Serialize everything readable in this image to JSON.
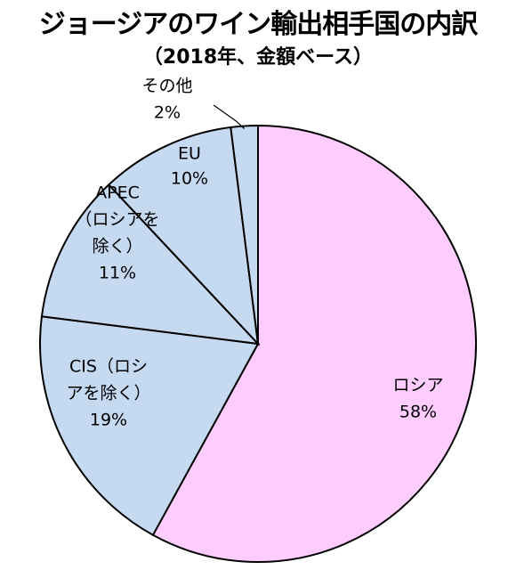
{
  "chart_data": {
    "type": "pie",
    "title": "ジョージアのワイン輸出相手国の内訳",
    "subtitle": "（2018年、金額ベース）",
    "slices": [
      {
        "lines": [
          "ロシア"
        ],
        "pct_label": "58%",
        "value": 58,
        "color": "#ffccff"
      },
      {
        "lines": [
          "CIS（ロシ",
          "アを除く）"
        ],
        "pct_label": "19%",
        "value": 19,
        "color": "#c5d9f1"
      },
      {
        "lines": [
          "APEC",
          "（ロシアを",
          "除く）"
        ],
        "pct_label": "11%",
        "value": 11,
        "color": "#c5d9f1"
      },
      {
        "lines": [
          "EU"
        ],
        "pct_label": "10%",
        "value": 10,
        "color": "#c5d9f1"
      },
      {
        "lines": [
          "その他"
        ],
        "pct_label": "2%",
        "value": 2,
        "color": "#c5d9f1"
      }
    ],
    "legend": "none"
  }
}
